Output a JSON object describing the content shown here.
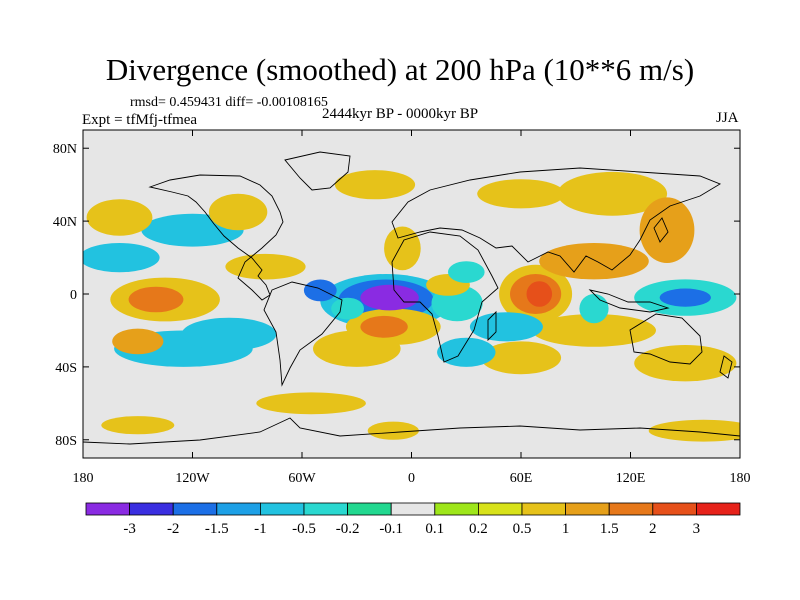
{
  "chart_data": {
    "type": "heatmap",
    "title": "Divergence (smoothed) at 200 hPa (10**6 m/s)",
    "stats_text": "rmsd= 0.459431 diff= -0.00108165",
    "subtitle": "2444kyr BP - 0000kyr BP",
    "left_label": "Expt = tfMfj-tfmea",
    "right_label": "JJA",
    "xlim": [
      -180,
      180
    ],
    "ylim": [
      -90,
      90
    ],
    "x_ticks": [
      {
        "value": -180,
        "label": "180"
      },
      {
        "value": -120,
        "label": "120W"
      },
      {
        "value": -60,
        "label": "60W"
      },
      {
        "value": 0,
        "label": "0"
      },
      {
        "value": 60,
        "label": "60E"
      },
      {
        "value": 120,
        "label": "120E"
      },
      {
        "value": 180,
        "label": "180"
      }
    ],
    "y_ticks": [
      {
        "value": 80,
        "label": "80N"
      },
      {
        "value": 40,
        "label": "40N"
      },
      {
        "value": 0,
        "label": "0"
      },
      {
        "value": -40,
        "label": "40S"
      },
      {
        "value": -80,
        "label": "80S"
      }
    ],
    "colorbar": {
      "colors": [
        "#8a2be2",
        "#3a2ee0",
        "#1c6fe6",
        "#1da0e6",
        "#22c2e0",
        "#2ad8d0",
        "#22d890",
        "#e6e6e6",
        "#9ee61a",
        "#d8e21a",
        "#e6c21a",
        "#e6a01a",
        "#e6781a",
        "#e6501a",
        "#e6221a"
      ],
      "levels": [
        "-3",
        "-2",
        "-1.5",
        "-1",
        "-0.5",
        "-0.2",
        "-0.1",
        "0.1",
        "0.2",
        "0.5",
        "1",
        "1.5",
        "2",
        "3"
      ]
    },
    "anomalies": [
      {
        "lon": -12,
        "lat": -2,
        "value": -3.2,
        "rx": 16,
        "ry": 7
      },
      {
        "lon": -14,
        "lat": -3,
        "value": -1.8,
        "rx": 26,
        "ry": 11
      },
      {
        "lon": -14,
        "lat": -4,
        "value": -0.6,
        "rx": 36,
        "ry": 15
      },
      {
        "lon": 150,
        "lat": -2,
        "value": -1.8,
        "rx": 14,
        "ry": 5
      },
      {
        "lon": 150,
        "lat": -2,
        "value": -0.5,
        "rx": 28,
        "ry": 10
      },
      {
        "lon": 100,
        "lat": -8,
        "value": -0.5,
        "rx": 8,
        "ry": 8
      },
      {
        "lon": 25,
        "lat": -5,
        "value": -0.5,
        "rx": 14,
        "ry": 10
      },
      {
        "lon": 20,
        "lat": 5,
        "value": 0.5,
        "rx": 12,
        "ry": 6
      },
      {
        "lon": 70,
        "lat": 0,
        "value": 2.6,
        "rx": 7,
        "ry": 7
      },
      {
        "lon": 68,
        "lat": 0,
        "value": 1.6,
        "rx": 14,
        "ry": 11
      },
      {
        "lon": 68,
        "lat": 0,
        "value": 0.6,
        "rx": 20,
        "ry": 16
      },
      {
        "lon": -140,
        "lat": -3,
        "value": 1.6,
        "rx": 15,
        "ry": 7
      },
      {
        "lon": -135,
        "lat": -3,
        "value": 0.6,
        "rx": 30,
        "ry": 12
      },
      {
        "lon": -50,
        "lat": 2,
        "value": -1.6,
        "rx": 9,
        "ry": 6
      },
      {
        "lon": -35,
        "lat": -8,
        "value": -0.5,
        "rx": 9,
        "ry": 6
      },
      {
        "lon": -5,
        "lat": 25,
        "value": 0.6,
        "rx": 10,
        "ry": 12
      },
      {
        "lon": -15,
        "lat": -18,
        "value": 1.6,
        "rx": 13,
        "ry": 6
      },
      {
        "lon": -10,
        "lat": -18,
        "value": 0.6,
        "rx": 26,
        "ry": 10
      },
      {
        "lon": 52,
        "lat": -18,
        "value": -1.0,
        "rx": 20,
        "ry": 8
      },
      {
        "lon": 100,
        "lat": 18,
        "value": 1.0,
        "rx": 30,
        "ry": 10
      },
      {
        "lon": 140,
        "lat": 35,
        "value": 1.2,
        "rx": 15,
        "ry": 18
      },
      {
        "lon": 100,
        "lat": -20,
        "value": 0.6,
        "rx": 34,
        "ry": 9
      },
      {
        "lon": -100,
        "lat": -22,
        "value": -1.0,
        "rx": 26,
        "ry": 9
      },
      {
        "lon": -150,
        "lat": -26,
        "value": 1.0,
        "rx": 14,
        "ry": 7
      },
      {
        "lon": -125,
        "lat": -30,
        "value": -0.6,
        "rx": 38,
        "ry": 10
      },
      {
        "lon": -30,
        "lat": -30,
        "value": 0.6,
        "rx": 24,
        "ry": 10
      },
      {
        "lon": 30,
        "lat": -32,
        "value": -0.8,
        "rx": 16,
        "ry": 8
      },
      {
        "lon": 60,
        "lat": -35,
        "value": 0.8,
        "rx": 22,
        "ry": 9
      },
      {
        "lon": 150,
        "lat": -38,
        "value": 0.5,
        "rx": 28,
        "ry": 10
      },
      {
        "lon": -120,
        "lat": 35,
        "value": -0.8,
        "rx": 28,
        "ry": 9
      },
      {
        "lon": -160,
        "lat": 42,
        "value": 0.6,
        "rx": 18,
        "ry": 10
      },
      {
        "lon": -95,
        "lat": 45,
        "value": 0.6,
        "rx": 16,
        "ry": 10
      },
      {
        "lon": -20,
        "lat": 60,
        "value": 0.6,
        "rx": 22,
        "ry": 8
      },
      {
        "lon": 60,
        "lat": 55,
        "value": 0.6,
        "rx": 24,
        "ry": 8
      },
      {
        "lon": 110,
        "lat": 55,
        "value": 0.5,
        "rx": 30,
        "ry": 12
      },
      {
        "lon": -160,
        "lat": 20,
        "value": -0.8,
        "rx": 22,
        "ry": 8
      },
      {
        "lon": -80,
        "lat": 15,
        "value": 0.5,
        "rx": 22,
        "ry": 7
      },
      {
        "lon": 30,
        "lat": 12,
        "value": -0.5,
        "rx": 10,
        "ry": 6
      },
      {
        "lon": -55,
        "lat": -60,
        "value": 0.5,
        "rx": 30,
        "ry": 6
      },
      {
        "lon": 160,
        "lat": -75,
        "value": 0.5,
        "rx": 30,
        "ry": 6
      },
      {
        "lon": -150,
        "lat": -72,
        "value": 0.5,
        "rx": 20,
        "ry": 5
      },
      {
        "lon": -10,
        "lat": -75,
        "value": 0.5,
        "rx": 14,
        "ry": 5
      }
    ]
  }
}
